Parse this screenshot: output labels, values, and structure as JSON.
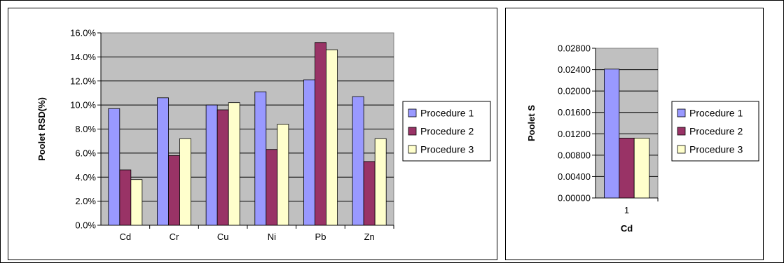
{
  "chart_data": [
    {
      "type": "bar",
      "title": "",
      "xlabel": "",
      "ylabel": "Poolet RSD(%)",
      "categories": [
        "Cd",
        "Cr",
        "Cu",
        "Ni",
        "Pb",
        "Zn"
      ],
      "ylim": [
        0,
        16
      ],
      "yticks": [
        "0.0%",
        "2.0%",
        "4.0%",
        "6.0%",
        "8.0%",
        "10.0%",
        "12.0%",
        "14.0%",
        "16.0%"
      ],
      "grid": true,
      "legend_position": "right",
      "series": [
        {
          "name": "Procedure 1",
          "color": "#9999ff",
          "values": [
            9.7,
            10.6,
            10.0,
            11.1,
            12.1,
            10.7
          ]
        },
        {
          "name": "Procedure 2",
          "color": "#993366",
          "values": [
            4.6,
            5.8,
            9.6,
            6.3,
            15.2,
            5.3
          ]
        },
        {
          "name": "Procedure 3",
          "color": "#ffffcc",
          "values": [
            3.8,
            7.2,
            10.2,
            8.4,
            14.6,
            7.2
          ]
        }
      ]
    },
    {
      "type": "bar",
      "title": "",
      "xlabel": "Cd",
      "ylabel": "Poolet S",
      "categories": [
        "1"
      ],
      "ylim": [
        0,
        0.028
      ],
      "yticks": [
        "0.00000",
        "0.00400",
        "0.00800",
        "0.01200",
        "0.01600",
        "0.02000",
        "0.02400",
        "0.02800"
      ],
      "grid": true,
      "legend_position": "right",
      "series": [
        {
          "name": "Procedure 1",
          "color": "#9999ff",
          "values": [
            0.0241
          ]
        },
        {
          "name": "Procedure 2",
          "color": "#993366",
          "values": [
            0.0112
          ]
        },
        {
          "name": "Procedure 3",
          "color": "#ffffcc",
          "values": [
            0.0112
          ]
        }
      ]
    }
  ],
  "colors": {
    "plot_background": "#c0c0c0",
    "gridline": "#000000"
  }
}
